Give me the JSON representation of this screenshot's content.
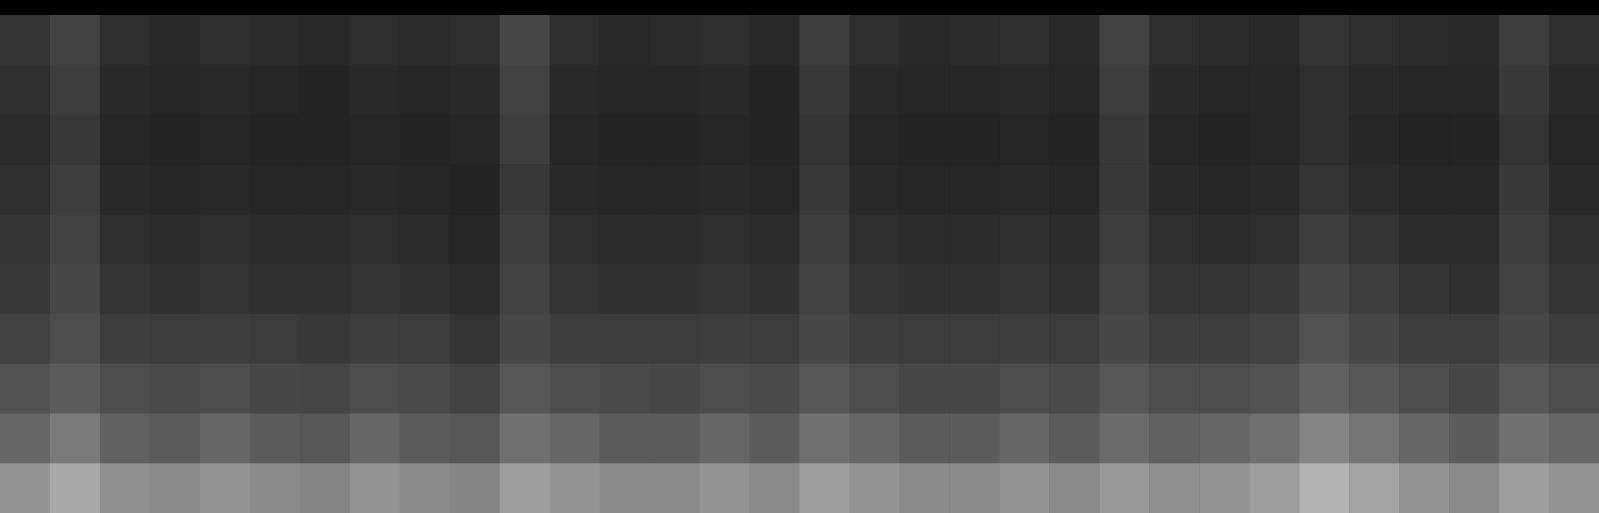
{
  "chart_data": {
    "type": "heatmap",
    "tick_labels": false,
    "color": "#ffffff",
    "zlim": [
      0,
      100
    ],
    "cells": [
      [
        20,
        26,
        18,
        16,
        18,
        17,
        16,
        18,
        17,
        18,
        28,
        18,
        16,
        17,
        18,
        16,
        24,
        18,
        16,
        17,
        18,
        16,
        26,
        18,
        17,
        16,
        20,
        18,
        17,
        16,
        24,
        18
      ],
      [
        18,
        24,
        16,
        15,
        16,
        15,
        14,
        16,
        15,
        16,
        26,
        16,
        15,
        15,
        16,
        14,
        22,
        16,
        15,
        15,
        16,
        15,
        24,
        16,
        15,
        15,
        18,
        16,
        15,
        15,
        22,
        16
      ],
      [
        17,
        22,
        15,
        14,
        15,
        14,
        14,
        15,
        14,
        15,
        24,
        15,
        14,
        14,
        15,
        14,
        20,
        15,
        14,
        14,
        15,
        14,
        22,
        15,
        14,
        15,
        18,
        15,
        14,
        14,
        20,
        15
      ],
      [
        18,
        24,
        16,
        15,
        16,
        15,
        15,
        16,
        15,
        14,
        22,
        16,
        15,
        15,
        16,
        15,
        22,
        16,
        15,
        15,
        16,
        15,
        22,
        16,
        15,
        16,
        20,
        17,
        15,
        15,
        22,
        16
      ],
      [
        20,
        26,
        18,
        17,
        18,
        17,
        17,
        18,
        17,
        15,
        24,
        18,
        17,
        17,
        18,
        17,
        24,
        18,
        17,
        17,
        18,
        17,
        24,
        18,
        17,
        18,
        24,
        20,
        17,
        17,
        24,
        18
      ],
      [
        22,
        28,
        20,
        19,
        20,
        19,
        19,
        20,
        19,
        17,
        26,
        20,
        19,
        19,
        20,
        19,
        26,
        20,
        19,
        19,
        20,
        19,
        26,
        20,
        20,
        22,
        28,
        24,
        20,
        19,
        26,
        20
      ],
      [
        26,
        30,
        24,
        23,
        24,
        23,
        22,
        24,
        23,
        20,
        28,
        24,
        23,
        23,
        24,
        23,
        28,
        24,
        23,
        23,
        24,
        23,
        28,
        24,
        24,
        26,
        32,
        28,
        24,
        23,
        28,
        24
      ],
      [
        32,
        36,
        30,
        29,
        30,
        28,
        27,
        30,
        29,
        26,
        34,
        30,
        29,
        28,
        30,
        29,
        34,
        30,
        28,
        28,
        30,
        29,
        34,
        30,
        30,
        32,
        38,
        34,
        30,
        28,
        34,
        30
      ],
      [
        40,
        48,
        38,
        36,
        40,
        36,
        34,
        40,
        36,
        34,
        44,
        40,
        36,
        36,
        40,
        36,
        44,
        40,
        36,
        36,
        40,
        36,
        42,
        38,
        40,
        44,
        52,
        46,
        40,
        36,
        44,
        40
      ],
      [
        58,
        66,
        56,
        54,
        58,
        54,
        52,
        58,
        54,
        52,
        62,
        58,
        54,
        54,
        58,
        54,
        62,
        58,
        54,
        54,
        58,
        54,
        60,
        56,
        58,
        62,
        70,
        64,
        58,
        54,
        62,
        58
      ]
    ]
  }
}
